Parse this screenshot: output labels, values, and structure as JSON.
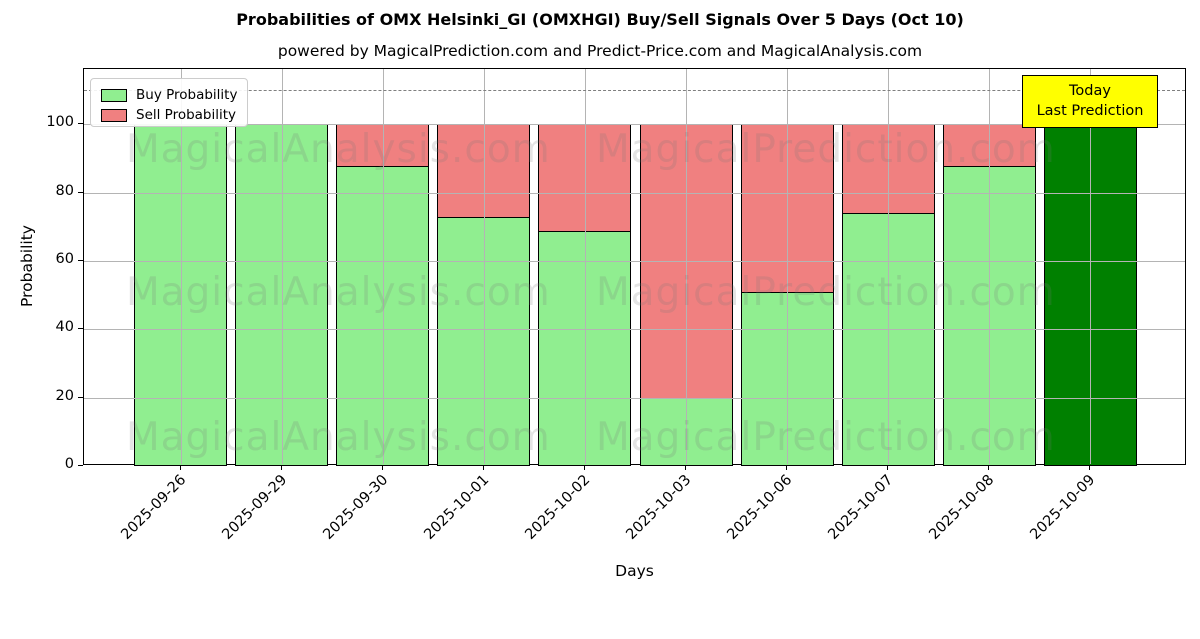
{
  "title": "Probabilities of OMX Helsinki_GI (OMXHGI) Buy/Sell Signals Over 5 Days (Oct 10)",
  "subtitle": "powered by MagicalPrediction.com and Predict-Price.com and MagicalAnalysis.com",
  "chart_data": {
    "type": "bar",
    "stacked": true,
    "title": "Probabilities of OMX Helsinki_GI (OMXHGI) Buy/Sell Signals Over 5 Days (Oct 10)",
    "xlabel": "Days",
    "ylabel": "Probability",
    "categories": [
      "2025-09-26",
      "2025-09-29",
      "2025-09-30",
      "2025-10-01",
      "2025-10-02",
      "2025-10-03",
      "2025-10-06",
      "2025-10-07",
      "2025-10-08",
      "2025-10-09"
    ],
    "series": [
      {
        "name": "Buy Probability",
        "color": "#90EE90",
        "values": [
          100,
          100,
          88,
          73,
          69,
          20,
          51,
          74,
          88,
          100
        ]
      },
      {
        "name": "Sell Probability",
        "color": "#F08080",
        "values": [
          0,
          0,
          12,
          27,
          31,
          80,
          49,
          26,
          12,
          0
        ]
      }
    ],
    "today_bar": {
      "category": "2025-10-09",
      "index": 9,
      "color": "#008000"
    },
    "yticks": [
      0,
      20,
      40,
      60,
      80,
      100
    ],
    "ylim": [
      0,
      116.2
    ],
    "grid": true,
    "legend_position": "upper-left",
    "dashed_line_y": 110,
    "bar_edge_color": "#000000"
  },
  "annotation": {
    "line1": "Today",
    "line2": "Last Prediction",
    "bg_color": "#FFFF00"
  },
  "watermarks": {
    "left_text": "MagicalAnalysis.com",
    "right_text": "MagicalPrediction.com"
  },
  "colors": {
    "buy": "#90EE90",
    "sell": "#F08080",
    "today": "#008000",
    "annotation_bg": "#FFFF00",
    "grid": "#b4b4b4",
    "dashed": "#7f7f7f"
  }
}
